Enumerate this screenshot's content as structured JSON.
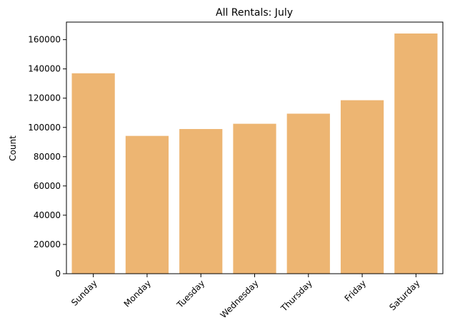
{
  "chart_data": {
    "type": "bar",
    "title": "All Rentals: July",
    "xlabel": "",
    "ylabel": "Count",
    "categories": [
      "Sunday",
      "Monday",
      "Tuesday",
      "Wednesday",
      "Thursday",
      "Friday",
      "Saturday"
    ],
    "values": [
      137000,
      94200,
      98900,
      102500,
      109400,
      118600,
      164200
    ],
    "ylim": [
      0,
      172000
    ],
    "yticks": [
      0,
      20000,
      40000,
      60000,
      80000,
      100000,
      120000,
      140000,
      160000
    ],
    "bar_color": "#EDB572",
    "grid": false,
    "legend": "none"
  }
}
